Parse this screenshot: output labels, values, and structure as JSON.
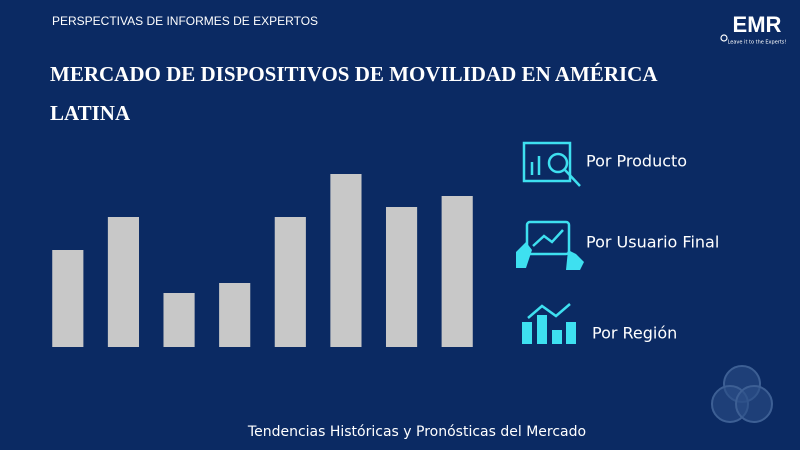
{
  "header": {
    "label": "PERSPECTIVAS DE INFORMES DE EXPERTOS"
  },
  "logo": {
    "name": "EMR",
    "tagline": "Leave it to the Experts!"
  },
  "chart_data": {
    "type": "bar",
    "title_lines": [
      "MERCADO DE DISPOSITIVOS DE MOVILIDAD EN AMÉRICA",
      "LATINA"
    ],
    "categories": [
      null,
      null,
      null,
      null,
      null,
      null,
      null,
      null
    ],
    "values": [
      97,
      130,
      54,
      64,
      130,
      173,
      140,
      151
    ],
    "color": "#c8c8c8",
    "ylim": [
      0,
      180
    ]
  },
  "segments": [
    "Por Producto",
    "Por Usuario Final",
    "Por Región"
  ],
  "footer": "Tendencias Históricas y Pronósticas del Mercado"
}
